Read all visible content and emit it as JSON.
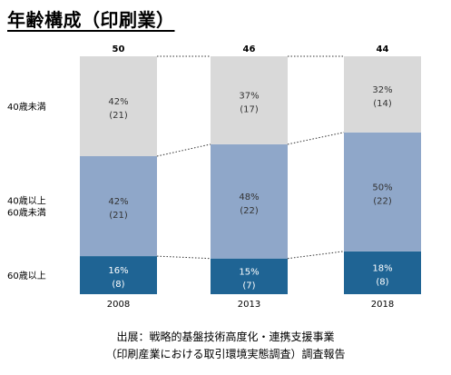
{
  "title": "年齢構成（印刷業）",
  "source": {
    "line1": "出展：戦略的基盤技術高度化・連携支援事業",
    "line2": "（印刷産業における取引環境実態調査）調査報告"
  },
  "colors": {
    "bottom": "#1f6494",
    "middle": "#8fa7c9",
    "top": "#d9d9d9",
    "text_dark": "#333333",
    "text_light": "#ffffff",
    "connector": "#333333"
  },
  "chart_data": {
    "type": "bar",
    "stacked": true,
    "categories": [
      "2008",
      "2013",
      "2018"
    ],
    "totals": [
      50,
      46,
      44
    ],
    "series": [
      {
        "name": "60歳以上",
        "key": "bottom",
        "percent": [
          16,
          15,
          18
        ],
        "count": [
          8,
          7,
          8
        ]
      },
      {
        "name": "40歳以上\n60歳未満",
        "key": "middle",
        "percent": [
          42,
          48,
          50
        ],
        "count": [
          21,
          22,
          22
        ]
      },
      {
        "name": "40歳未満",
        "key": "top",
        "percent": [
          42,
          37,
          32
        ],
        "count": [
          21,
          17,
          14
        ]
      }
    ]
  }
}
